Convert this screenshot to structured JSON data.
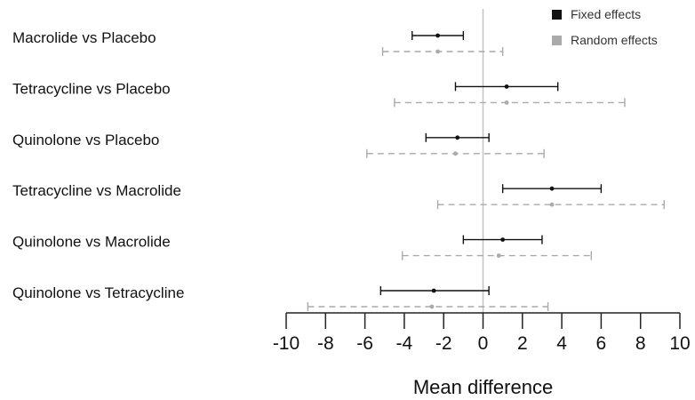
{
  "chart_data": {
    "type": "forest",
    "xlabel": "Mean difference",
    "xlim": [
      -10,
      10
    ],
    "xticks": [
      -10,
      -8,
      -6,
      -4,
      -2,
      0,
      2,
      4,
      6,
      8,
      10
    ],
    "reference_line": 0,
    "grid": false,
    "legend_position": "top-right",
    "comparisons": [
      "Macrolide vs Placebo",
      "Tetracycline vs Placebo",
      "Quinolone vs Placebo",
      "Tetracycline vs Macrolide",
      "Quinolone vs Macrolide",
      "Quinolone vs Tetracycline"
    ],
    "series": [
      {
        "name": "Fixed effects",
        "color": "#111111",
        "line_style": "solid",
        "estimate": [
          -2.3,
          1.2,
          -1.3,
          3.5,
          1.0,
          -2.5
        ],
        "lower": [
          -3.6,
          -1.4,
          -2.9,
          1.0,
          -1.0,
          -5.2
        ],
        "upper": [
          -1.0,
          3.8,
          0.3,
          6.0,
          3.0,
          0.3
        ]
      },
      {
        "name": "Random effects",
        "color": "#aaaaaa",
        "line_style": "dashed",
        "estimate": [
          -2.3,
          1.2,
          -1.4,
          3.5,
          0.8,
          -2.6
        ],
        "lower": [
          -5.1,
          -4.5,
          -5.9,
          -2.3,
          -4.1,
          -8.9
        ],
        "upper": [
          1.0,
          7.2,
          3.1,
          9.2,
          5.5,
          3.3
        ]
      }
    ]
  }
}
